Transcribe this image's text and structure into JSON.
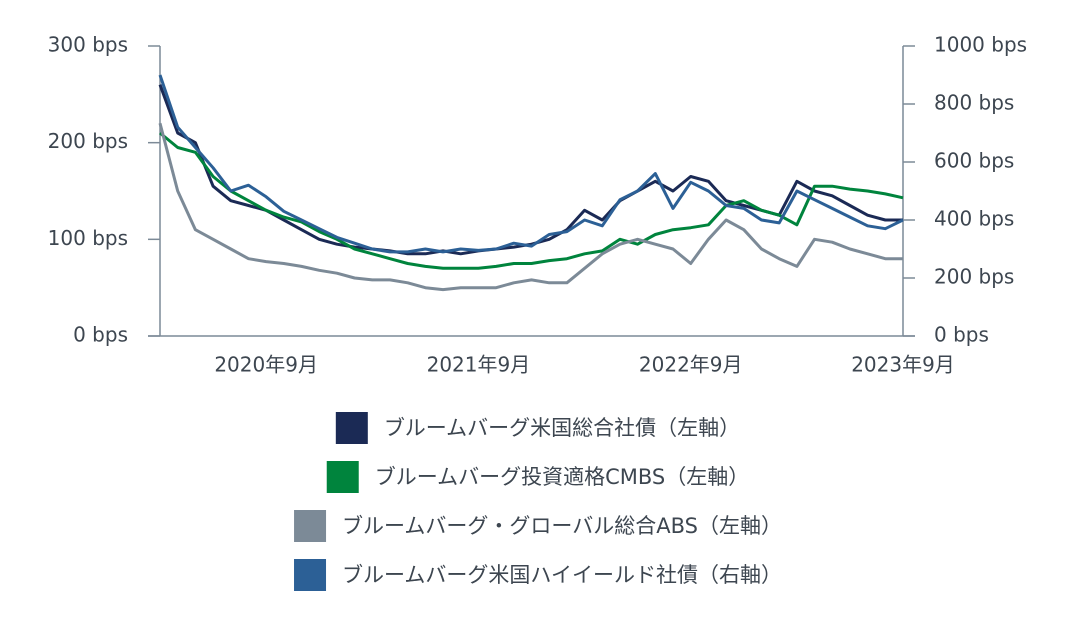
{
  "chart_data": {
    "type": "line",
    "x": [
      "2020-03",
      "2020-04",
      "2020-05",
      "2020-06",
      "2020-07",
      "2020-08",
      "2020-09",
      "2020-10",
      "2020-11",
      "2020-12",
      "2021-01",
      "2021-02",
      "2021-03",
      "2021-04",
      "2021-05",
      "2021-06",
      "2021-07",
      "2021-08",
      "2021-09",
      "2021-10",
      "2021-11",
      "2021-12",
      "2022-01",
      "2022-02",
      "2022-03",
      "2022-04",
      "2022-05",
      "2022-06",
      "2022-07",
      "2022-08",
      "2022-09",
      "2022-10",
      "2022-11",
      "2022-12",
      "2023-01",
      "2023-02",
      "2023-03",
      "2023-04",
      "2023-05",
      "2023-06",
      "2023-07",
      "2023-08",
      "2023-09"
    ],
    "xlim": [
      "2020-03",
      "2023-09"
    ],
    "xticks": [
      {
        "value": "2020-09",
        "label": "2020年9月"
      },
      {
        "value": "2021-09",
        "label": "2021年9月"
      },
      {
        "value": "2022-09",
        "label": "2022年9月"
      },
      {
        "value": "2023-09",
        "label": "2023年9月"
      }
    ],
    "ylim": [
      0,
      300
    ],
    "yticks": [
      {
        "value": 0,
        "label": "0 bps"
      },
      {
        "value": 100,
        "label": "100 bps"
      },
      {
        "value": 200,
        "label": "200 bps"
      },
      {
        "value": 300,
        "label": "300 bps"
      }
    ],
    "y2lim": [
      0,
      1000
    ],
    "y2ticks": [
      {
        "value": 0,
        "label": "0 bps"
      },
      {
        "value": 200,
        "label": "200 bps"
      },
      {
        "value": 400,
        "label": "400 bps"
      },
      {
        "value": 600,
        "label": "600 bps"
      },
      {
        "value": 800,
        "label": "800 bps"
      },
      {
        "value": 1000,
        "label": "1000 bps"
      }
    ],
    "series": [
      {
        "name": "ブルームバーグ米国総合社債（左軸）",
        "color": "#1b2a55",
        "values": [
          260,
          210,
          200,
          155,
          140,
          135,
          130,
          120,
          110,
          100,
          95,
          92,
          90,
          88,
          85,
          85,
          88,
          85,
          88,
          90,
          92,
          95,
          100,
          110,
          130,
          120,
          140,
          150,
          160,
          150,
          165,
          160,
          140,
          135,
          130,
          125,
          160,
          150,
          145,
          135,
          125,
          120,
          120
        ]
      },
      {
        "name": "ブルームバーグ投資適格CMBS（左軸）",
        "color": "#00843d",
        "values": [
          210,
          195,
          190,
          165,
          150,
          140,
          130,
          123,
          118,
          108,
          100,
          90,
          85,
          80,
          75,
          72,
          70,
          70,
          70,
          72,
          75,
          75,
          78,
          80,
          85,
          88,
          100,
          95,
          105,
          110,
          112,
          115,
          135,
          140,
          130,
          125,
          115,
          155,
          155,
          152,
          150,
          147,
          143
        ]
      },
      {
        "name": "ブルームバーグ・グローバル総合ABS（左軸）",
        "color": "#7c8a97",
        "values": [
          220,
          150,
          110,
          100,
          90,
          80,
          77,
          75,
          72,
          68,
          65,
          60,
          58,
          58,
          55,
          50,
          48,
          50,
          50,
          50,
          55,
          58,
          55,
          55,
          70,
          85,
          95,
          100,
          95,
          90,
          75,
          100,
          120,
          110,
          90,
          80,
          72,
          100,
          97,
          90,
          85,
          80,
          80
        ]
      },
      {
        "name": "ブルームバーグ米国ハイイールド社債（右軸）",
        "color": "#2c6096",
        "axis": "y2",
        "values": [
          900,
          720,
          650,
          580,
          500,
          520,
          480,
          430,
          400,
          370,
          340,
          320,
          300,
          290,
          290,
          300,
          290,
          300,
          295,
          300,
          320,
          310,
          350,
          360,
          400,
          380,
          470,
          500,
          560,
          440,
          530,
          500,
          450,
          440,
          400,
          390,
          500,
          470,
          440,
          410,
          380,
          370,
          400
        ]
      }
    ]
  }
}
